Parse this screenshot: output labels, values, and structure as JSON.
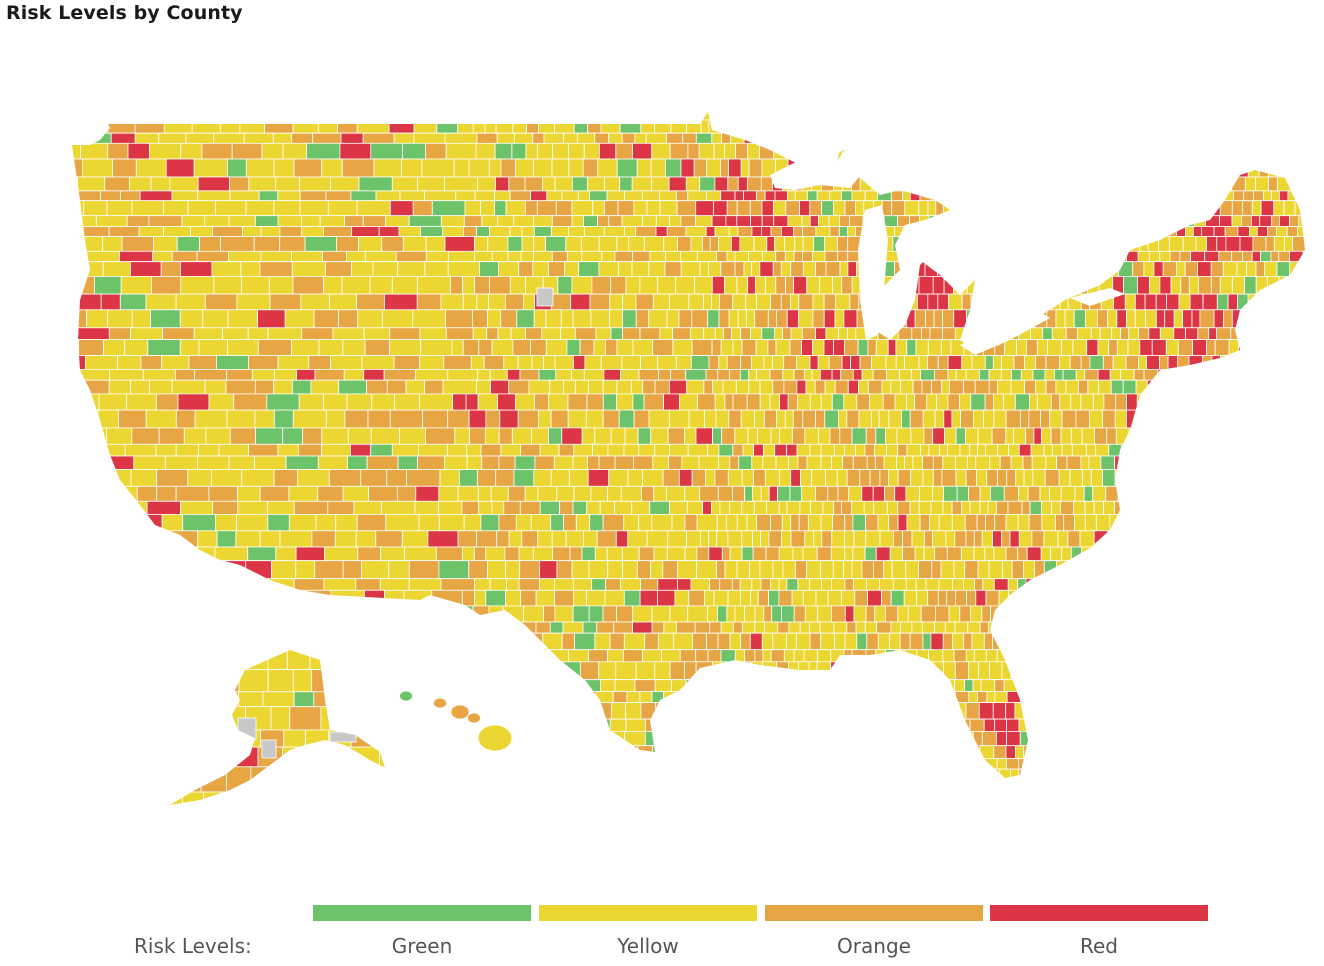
{
  "title": "Risk Levels by County",
  "legend": {
    "label": "Risk Levels:",
    "items": [
      {
        "label": "Green",
        "color": "#6cc36a"
      },
      {
        "label": "Yellow",
        "color": "#ecd631"
      },
      {
        "label": "Orange",
        "color": "#e7a544"
      },
      {
        "label": "Red",
        "color": "#dc3545"
      }
    ]
  },
  "colors": {
    "green": "#6cc36a",
    "yellow": "#ecd631",
    "orange": "#e7a544",
    "red": "#dc3545",
    "nodata": "#c8c8c8",
    "border": "#ffffff"
  }
}
